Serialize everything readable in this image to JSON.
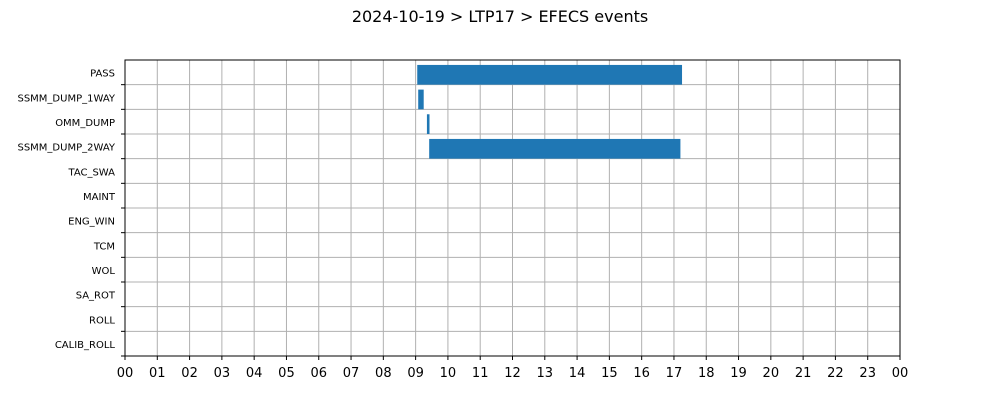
{
  "chart_data": {
    "type": "bar",
    "orientation": "horizontal-timeline",
    "title": "2024-10-19 > LTP17 > EFECS events",
    "xlabel": "",
    "ylabel": "",
    "xlim": [
      0,
      24
    ],
    "x_tick_labels": [
      "00",
      "01",
      "02",
      "03",
      "04",
      "05",
      "06",
      "07",
      "08",
      "09",
      "10",
      "11",
      "12",
      "13",
      "14",
      "15",
      "16",
      "17",
      "18",
      "19",
      "20",
      "21",
      "22",
      "23",
      "00"
    ],
    "categories": [
      "PASS",
      "SSMM_DUMP_1WAY",
      "OMM_DUMP",
      "SSMM_DUMP_2WAY",
      "TAC_SWA",
      "MAINT",
      "ENG_WIN",
      "TCM",
      "WOL",
      "SA_ROT",
      "ROLL",
      "CALIB_ROLL"
    ],
    "events": [
      {
        "category": "PASS",
        "start": 9.05,
        "end": 17.25
      },
      {
        "category": "SSMM_DUMP_1WAY",
        "start": 9.08,
        "end": 9.25
      },
      {
        "category": "OMM_DUMP",
        "start": 9.35,
        "end": 9.43
      },
      {
        "category": "SSMM_DUMP_2WAY",
        "start": 9.42,
        "end": 17.2
      }
    ],
    "bar_color": "#1f77b4",
    "grid": true
  }
}
